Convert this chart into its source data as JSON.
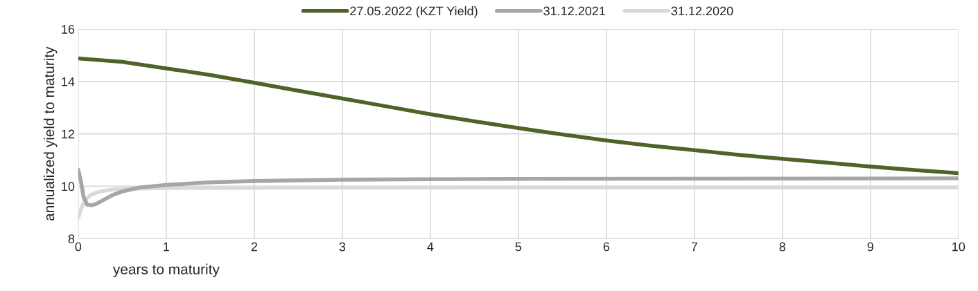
{
  "chart_data": {
    "type": "line",
    "xlabel": "years to maturity",
    "ylabel": "annualized yield to maturity",
    "xlim": [
      0,
      10
    ],
    "xticks": [
      0,
      1,
      2,
      3,
      4,
      5,
      6,
      7,
      8,
      9,
      10
    ],
    "ylim": [
      8,
      16
    ],
    "yticks": [
      8,
      10,
      12,
      14,
      16
    ],
    "grid": true,
    "legend": "top",
    "line_style": "solid",
    "marker": "none",
    "series": [
      {
        "name": "27.05.2022 (KZT Yield)",
        "color": "#4f6228",
        "x": [
          0,
          0.5,
          1,
          1.5,
          2,
          2.5,
          3,
          3.5,
          4,
          4.5,
          5,
          5.5,
          6,
          6.5,
          7,
          7.5,
          8,
          8.5,
          9,
          9.5,
          10
        ],
        "values": [
          14.88,
          14.75,
          14.5,
          14.25,
          13.95,
          13.65,
          13.35,
          13.05,
          12.75,
          12.48,
          12.22,
          11.98,
          11.75,
          11.55,
          11.38,
          11.2,
          11.05,
          10.9,
          10.75,
          10.62,
          10.5
        ]
      },
      {
        "name": "31.12.2021",
        "color": "#a6a6a6",
        "x": [
          0,
          0.03,
          0.06,
          0.1,
          0.15,
          0.2,
          0.3,
          0.4,
          0.5,
          0.7,
          1,
          1.5,
          2,
          3,
          4,
          5,
          7,
          10
        ],
        "values": [
          10.63,
          10.2,
          9.6,
          9.3,
          9.27,
          9.32,
          9.5,
          9.68,
          9.8,
          9.95,
          10.05,
          10.15,
          10.2,
          10.25,
          10.27,
          10.28,
          10.29,
          10.3
        ]
      },
      {
        "name": "31.12.2020",
        "color": "#d9d9d9",
        "x": [
          0,
          0.05,
          0.1,
          0.15,
          0.2,
          0.3,
          0.4,
          0.6,
          1,
          2,
          5,
          10
        ],
        "values": [
          8.8,
          9.3,
          9.55,
          9.68,
          9.75,
          9.83,
          9.88,
          9.91,
          9.93,
          9.94,
          9.95,
          9.95
        ]
      }
    ]
  }
}
